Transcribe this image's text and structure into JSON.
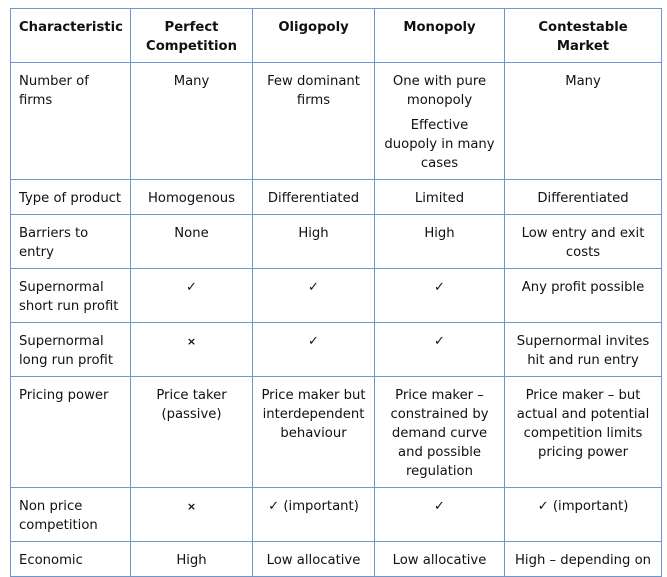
{
  "table": {
    "headers": [
      "Characteristic",
      "Perfect Competition",
      "Oligopoly",
      "Monopoly",
      "Contestable Market"
    ],
    "rows": [
      {
        "label": "Number of firms",
        "perfect": "Many",
        "oligopoly": "Few dominant firms",
        "monopoly": "One with pure monopoly",
        "monopoly_extra": "Effective duopoly in many cases",
        "contestable": "Many"
      },
      {
        "label": "Type of product",
        "perfect": "Homogenous",
        "oligopoly": "Differentiated",
        "monopoly": "Limited",
        "contestable": "Differentiated"
      },
      {
        "label": "Barriers to entry",
        "perfect": "None",
        "oligopoly": "High",
        "monopoly": "High",
        "contestable": "Low entry and exit costs"
      },
      {
        "label": "Supernormal short run profit",
        "perfect": "✓",
        "oligopoly": "✓",
        "monopoly": "✓",
        "contestable": "Any profit possible"
      },
      {
        "label": "Supernormal long run profit",
        "perfect": "×",
        "oligopoly": "✓",
        "monopoly": "✓",
        "contestable": "Supernormal invites hit and run entry"
      },
      {
        "label": "Pricing power",
        "perfect": "Price taker (passive)",
        "oligopoly": "Price maker but interdependent behaviour",
        "monopoly": "Price maker – constrained by demand curve and possible regulation",
        "contestable": "Price maker – but actual and potential competition limits pricing power"
      },
      {
        "label": "Non price competition",
        "perfect": "×",
        "oligopoly": "✓ (important)",
        "monopoly": "✓",
        "contestable": "✓ (important)"
      },
      {
        "label": "Economic",
        "perfect": "High",
        "oligopoly": "Low allocative",
        "monopoly": "Low allocative",
        "contestable": "High – depending on"
      }
    ]
  },
  "colors": {
    "border": "#6f97cf",
    "text": "#111111",
    "background": "#ffffff"
  }
}
